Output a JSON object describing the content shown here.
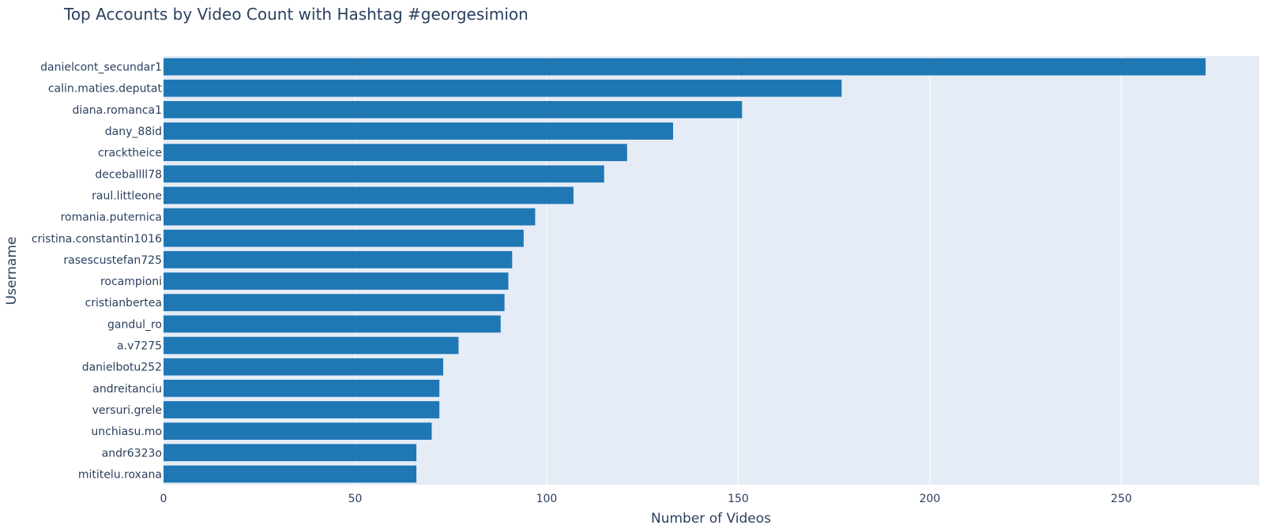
{
  "chart_data": {
    "type": "bar",
    "orientation": "horizontal",
    "title": "Top Accounts by Video Count with Hashtag #georgesimion",
    "xlabel": "Number of Videos",
    "ylabel": "Username",
    "xlim": [
      0,
      286
    ],
    "xticks": [
      0,
      50,
      100,
      150,
      200,
      250
    ],
    "grid": true,
    "colors": {
      "bar": "#1f77b4",
      "plot_bg": "#e5ecf6",
      "grid": "#ffffff",
      "text": "#2a3f5f"
    },
    "categories": [
      "danielcont_secundar1",
      "calin.maties.deputat",
      "diana.romanca1",
      "dany_88id",
      "cracktheice",
      "deceballll78",
      "raul.littleone",
      "romania.puternica",
      "cristina.constantin1016",
      "rasescustefan725",
      "rocampioni",
      "cristianbertea",
      "gandul_ro",
      "a.v7275",
      "danielbotu252",
      "andreitanciu",
      "versuri.grele",
      "unchiasu.mo",
      "andr6323o",
      "mititelu.roxana"
    ],
    "values": [
      272,
      177,
      151,
      133,
      121,
      115,
      107,
      97,
      94,
      91,
      90,
      89,
      88,
      77,
      73,
      72,
      72,
      70,
      66,
      66
    ]
  }
}
